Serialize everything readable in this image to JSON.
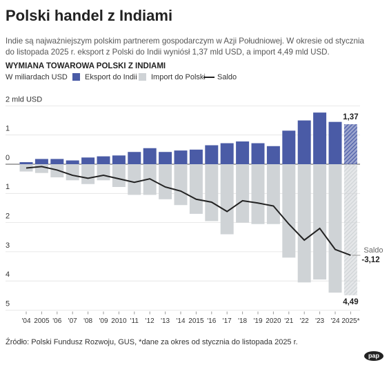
{
  "chart_data": {
    "type": "bar-line",
    "title": "Polski handel z Indiami",
    "subtitle": [
      "Indie są najważniejszym polskim partnerem gospodarczym w Azji Południowej. W okresie od stycznia",
      "do listopada 2025 r. eksport z Polski do Indii wyniósł 1,37 mld USD, a import 4,49 mld USD."
    ],
    "chart_title": "WYMIANA TOWAROWA POLSKI Z INDIAMI",
    "unit_label": "W miliardach USD",
    "categories": [
      "'04",
      "2005",
      "'06",
      "'07",
      "'08",
      "'09",
      "2010",
      "'11",
      "'12",
      "'13",
      "'14",
      "2015",
      "'16",
      "'17",
      "'18",
      "'19",
      "2020",
      "'21",
      "'22",
      "'23",
      "'24",
      "2025*"
    ],
    "series": [
      {
        "name": "Eksport do Indii",
        "type": "bar",
        "color": "#4a5ba6",
        "hatched": [
          "2025*"
        ],
        "values": [
          0.07,
          0.18,
          0.18,
          0.13,
          0.23,
          0.27,
          0.3,
          0.42,
          0.55,
          0.42,
          0.47,
          0.5,
          0.65,
          0.72,
          0.78,
          0.72,
          0.62,
          1.15,
          1.5,
          1.77,
          1.45,
          1.37
        ],
        "value_labels": [
          null,
          null,
          null,
          null,
          null,
          null,
          null,
          null,
          null,
          null,
          null,
          null,
          null,
          null,
          null,
          null,
          null,
          null,
          null,
          null,
          null,
          "1,37"
        ]
      },
      {
        "name": "Import do Polski",
        "type": "bar",
        "color": "#cfd3d6",
        "hatched": [
          "2025*"
        ],
        "values": [
          -0.25,
          -0.3,
          -0.45,
          -0.55,
          -0.68,
          -0.55,
          -0.78,
          -1.05,
          -1.05,
          -1.2,
          -1.4,
          -1.7,
          -1.95,
          -2.4,
          -2.0,
          -2.05,
          -2.05,
          -3.2,
          -4.05,
          -3.95,
          -4.4,
          -4.49
        ],
        "value_labels": [
          null,
          null,
          null,
          null,
          null,
          null,
          null,
          null,
          null,
          null,
          null,
          null,
          null,
          null,
          null,
          null,
          null,
          null,
          null,
          null,
          null,
          "4,49"
        ]
      },
      {
        "name": "Saldo",
        "type": "line",
        "color": "#222222",
        "values": [
          -0.13,
          -0.08,
          -0.2,
          -0.38,
          -0.48,
          -0.38,
          -0.5,
          -0.62,
          -0.5,
          -0.78,
          -0.92,
          -1.2,
          -1.3,
          -1.62,
          -1.25,
          -1.33,
          -1.43,
          -2.05,
          -2.6,
          -2.2,
          -2.92,
          -3.12
        ],
        "value_labels": [
          null,
          null,
          null,
          null,
          null,
          null,
          null,
          null,
          null,
          null,
          null,
          null,
          null,
          null,
          null,
          null,
          null,
          null,
          null,
          null,
          null,
          "-3,12"
        ]
      }
    ],
    "annotations": [
      {
        "text": "Saldo"
      }
    ],
    "ylim": [
      -5,
      2
    ],
    "yticks": [
      {
        "value": 2,
        "label": "2 mld USD"
      },
      1,
      0,
      {
        "value": -1,
        "label": "1"
      },
      {
        "value": -2,
        "label": "2"
      },
      {
        "value": -3,
        "label": "3"
      },
      {
        "value": -4,
        "label": "4"
      },
      {
        "value": -5,
        "label": "5"
      }
    ],
    "grid": true,
    "source": "Źródło: Polski Fundusz Rozwoju, GUS, *dane za okres od stycznia do listopada 2025 r.",
    "logo": "pap"
  }
}
